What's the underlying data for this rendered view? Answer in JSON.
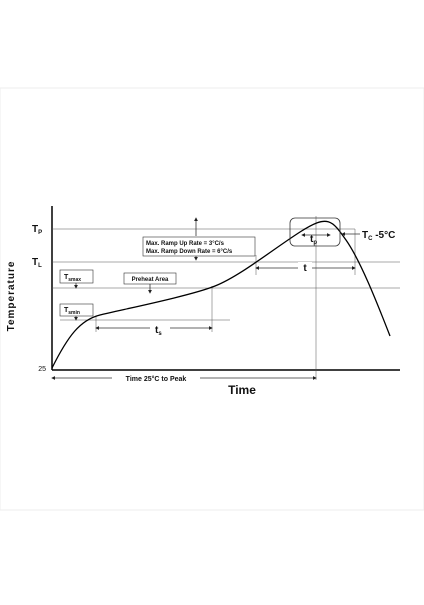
{
  "axes": {
    "y_label": "Temperature",
    "x_label": "Time",
    "origin_label": "25"
  },
  "levels": {
    "peak": {
      "main": "T",
      "sub": "P"
    },
    "liquidus": {
      "main": "T",
      "sub": "L"
    },
    "soak_max": {
      "main": "T",
      "sub": "smax"
    },
    "soak_min": {
      "main": "T",
      "sub": "smin"
    }
  },
  "annotations": {
    "preheat": "Preheat Area",
    "ramp_up": "Max. Ramp Up Rate = 3°C/s",
    "ramp_down": "Max. Ramp Down Rate = 6°C/s",
    "time_to_peak": "Time 25°C to Peak",
    "above_liquidus": "t",
    "soak_time": {
      "main": "t",
      "sub": "s"
    },
    "peak_time": {
      "main": "t",
      "sub": "p"
    },
    "classification": {
      "main": "T",
      "sub": "C",
      "rest": " -5°C"
    }
  }
}
